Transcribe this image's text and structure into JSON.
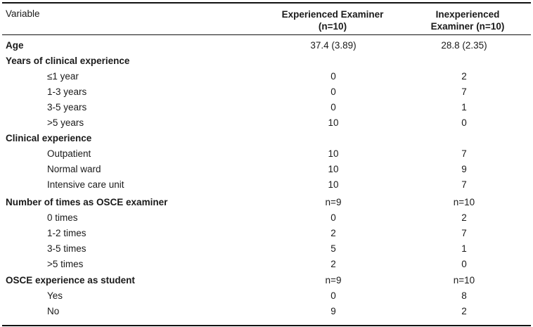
{
  "header": {
    "variable": "Variable",
    "experienced_line1": "Experienced Examiner",
    "experienced_line2": "(n=10)",
    "inexperienced_line1": "Inexperienced",
    "inexperienced_line2": "Examiner (n=10)"
  },
  "rows": [
    {
      "label": "Age",
      "c1": "37.4 (3.89)",
      "c2": "28.8 (2.35)",
      "kind": "section"
    },
    {
      "label": "Years of clinical experience",
      "c1": "",
      "c2": "",
      "kind": "section"
    },
    {
      "label": "≤1 year",
      "c1": "0",
      "c2": "2",
      "kind": "sub"
    },
    {
      "label": "1-3 years",
      "c1": "0",
      "c2": "7",
      "kind": "sub"
    },
    {
      "label": "3-5 years",
      "c1": "0",
      "c2": "1",
      "kind": "sub"
    },
    {
      "label": ">5 years",
      "c1": "10",
      "c2": "0",
      "kind": "sub"
    },
    {
      "label": "Clinical experience",
      "c1": "",
      "c2": "",
      "kind": "section"
    },
    {
      "label": "Outpatient",
      "c1": "10",
      "c2": "7",
      "kind": "sub"
    },
    {
      "label": "Normal ward",
      "c1": "10",
      "c2": "9",
      "kind": "sub"
    },
    {
      "label": "Intensive care unit",
      "c1": "10",
      "c2": "7",
      "kind": "sub"
    },
    {
      "label": "Number of times as OSCE examiner",
      "c1": "n=9",
      "c2": "n=10",
      "kind": "section"
    },
    {
      "label": "0 times",
      "c1": "0",
      "c2": "2",
      "kind": "sub"
    },
    {
      "label": "1-2 times",
      "c1": "2",
      "c2": "7",
      "kind": "sub"
    },
    {
      "label": "3-5 times",
      "c1": "5",
      "c2": "1",
      "kind": "sub"
    },
    {
      "label": ">5 times",
      "c1": "2",
      "c2": "0",
      "kind": "sub"
    },
    {
      "label": "OSCE experience as student",
      "c1": "n=9",
      "c2": "n=10",
      "kind": "section"
    },
    {
      "label": "Yes",
      "c1": "0",
      "c2": "8",
      "kind": "sub"
    },
    {
      "label": "No",
      "c1": "9",
      "c2": "2",
      "kind": "sub"
    }
  ]
}
